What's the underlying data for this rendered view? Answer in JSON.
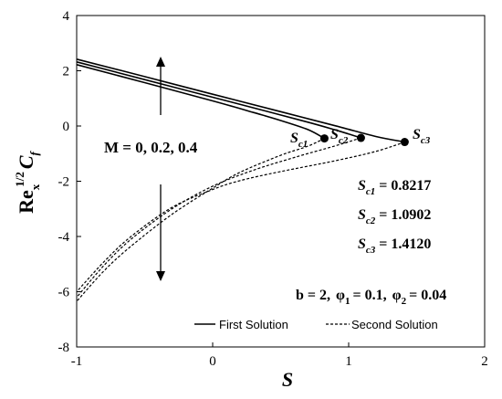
{
  "chart_data": {
    "type": "line",
    "xlabel": "S",
    "ylabel": "Re",
    "ylabel_sup": "1/2",
    "ylabel_sub": "x",
    "ylabel_c": "C",
    "ylabel_c_sub": "f",
    "xlim": [
      -1,
      2
    ],
    "ylim": [
      -8,
      4
    ],
    "x_ticks": [
      -1,
      0,
      1,
      2
    ],
    "y_ticks": [
      4,
      2,
      0,
      -2,
      -4,
      -6,
      -8
    ],
    "x_tick_labels": [
      "-1",
      "0",
      "1",
      "2"
    ],
    "y_tick_labels": [
      "4",
      "2",
      "0",
      "-2",
      "-4",
      "-6",
      "-8"
    ],
    "grid": false,
    "legend": {
      "position": "bottom-right",
      "items": [
        {
          "label": "First Solution",
          "style": "solid"
        },
        {
          "label": "Second Solution",
          "style": "dashed"
        }
      ]
    },
    "series": [
      {
        "branch": "first",
        "style": "solid",
        "x": [
          -1,
          -0.5,
          0,
          0.3,
          0.5,
          0.7,
          0.8217
        ],
        "y": [
          2.22,
          1.57,
          0.91,
          0.49,
          0.2,
          -0.13,
          -0.45
        ]
      },
      {
        "branch": "first",
        "style": "solid",
        "x": [
          -1,
          -0.5,
          0,
          0.4,
          0.7,
          0.9,
          1.0902
        ],
        "y": [
          2.32,
          1.68,
          1.04,
          0.53,
          0.14,
          -0.14,
          -0.43
        ]
      },
      {
        "branch": "first",
        "style": "solid",
        "x": [
          -1,
          -0.5,
          0,
          0.5,
          0.9,
          1.2,
          1.412
        ],
        "y": [
          2.42,
          1.79,
          1.15,
          0.52,
          0.01,
          -0.38,
          -0.58
        ]
      },
      {
        "branch": "second",
        "style": "dashed",
        "x": [
          0.8217,
          0.7,
          0.5,
          0.2,
          0,
          -0.3,
          -0.6,
          -0.8,
          -1
        ],
        "y": [
          -0.45,
          -0.73,
          -1.06,
          -1.68,
          -2.25,
          -3.2,
          -4.35,
          -5.25,
          -6.35
        ]
      },
      {
        "branch": "second",
        "style": "dashed",
        "x": [
          1.0902,
          0.9,
          0.6,
          0.3,
          0,
          -0.3,
          -0.6,
          -0.8,
          -1
        ],
        "y": [
          -0.43,
          -0.72,
          -1.14,
          -1.6,
          -2.18,
          -3.0,
          -4.1,
          -5.05,
          -6.2
        ]
      },
      {
        "branch": "second",
        "style": "dashed",
        "x": [
          1.412,
          1.2,
          0.9,
          0.5,
          0.2,
          0,
          -0.3,
          -0.6,
          -0.8,
          -1
        ],
        "y": [
          -0.58,
          -0.92,
          -1.26,
          -1.65,
          -1.98,
          -2.3,
          -2.95,
          -4.0,
          -4.92,
          -6.0
        ]
      }
    ],
    "critical_points": [
      {
        "label": "S",
        "sub": "c1",
        "x": 0.8217,
        "y": -0.45
      },
      {
        "label": "S",
        "sub": "c2",
        "x": 1.0902,
        "y": -0.43
      },
      {
        "label": "S",
        "sub": "c3",
        "x": 1.412,
        "y": -0.58
      }
    ],
    "annotations": {
      "m_values": "M = 0, 0.2, 0.4",
      "sc_values": [
        {
          "label": "S",
          "sub": "c1",
          "value": "= 0.8217"
        },
        {
          "label": "S",
          "sub": "c2",
          "value": "= 1.0902"
        },
        {
          "label": "S",
          "sub": "c3",
          "value": "= 1.4120"
        }
      ],
      "params": {
        "b": "b = 2,",
        "phi1_sym": "φ",
        "phi1_sub": "1",
        "phi1_val": "= 0.1,",
        "phi2_sym": "φ",
        "phi2_sub": "2",
        "phi2_val": "= 0.04"
      }
    }
  }
}
